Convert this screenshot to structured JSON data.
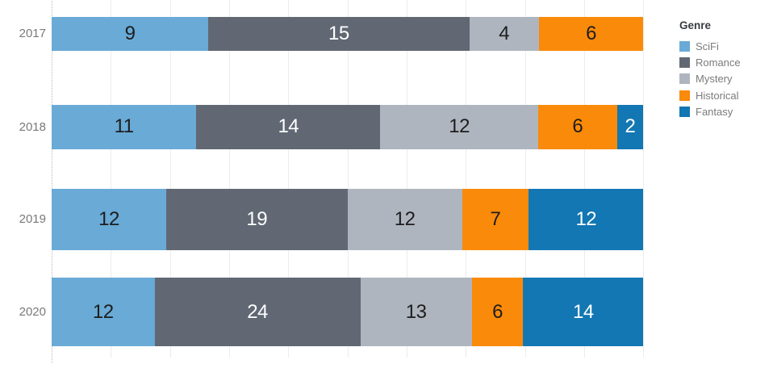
{
  "chart_data": {
    "type": "bar",
    "orientation": "horizontal",
    "stacking": "percent-of-row-total",
    "bar_thickness_encodes": "row-total",
    "title": "",
    "xlabel": "",
    "ylabel": "",
    "categories": [
      "2017",
      "2018",
      "2019",
      "2020"
    ],
    "series": [
      {
        "name": "SciFi",
        "color": "#69aad6",
        "label_color": "#1d1d1d",
        "values": [
          9,
          11,
          12,
          12
        ]
      },
      {
        "name": "Romance",
        "color": "#616874",
        "label_color": "#ffffff",
        "values": [
          15,
          14,
          19,
          24
        ]
      },
      {
        "name": "Mystery",
        "color": "#afb5bf",
        "label_color": "#1d1d1d",
        "values": [
          4,
          12,
          12,
          13
        ]
      },
      {
        "name": "Historical",
        "color": "#fa8a09",
        "label_color": "#1d1d1d",
        "values": [
          6,
          6,
          7,
          6
        ]
      },
      {
        "name": "Fantasy",
        "color": "#1277b3",
        "label_color": "#ffffff",
        "values": [
          0,
          2,
          12,
          14
        ]
      }
    ],
    "row_totals": [
      34,
      45,
      62,
      69
    ],
    "xlim": [
      0,
      100
    ],
    "grid": "vertical gridlines every 10 percent, dotted zero axis line",
    "legend_position": "top-right"
  },
  "legend": {
    "title": "Genre",
    "items": [
      {
        "label": "SciFi",
        "color": "#69aad6"
      },
      {
        "label": "Romance",
        "color": "#616874"
      },
      {
        "label": "Mystery",
        "color": "#afb5bf"
      },
      {
        "label": "Historical",
        "color": "#fa8a09"
      },
      {
        "label": "Fantasy",
        "color": "#1277b3"
      }
    ]
  }
}
